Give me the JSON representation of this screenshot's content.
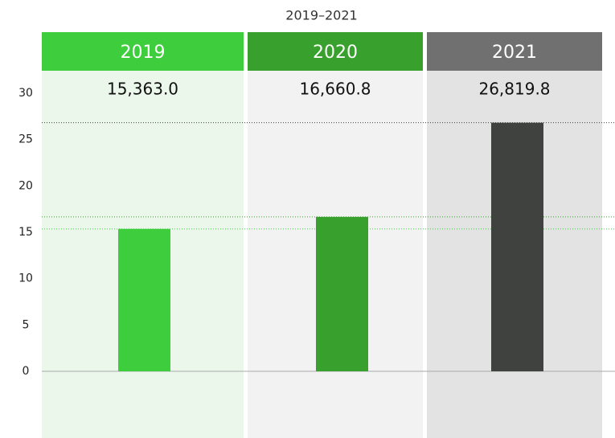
{
  "chart_data": {
    "type": "bar",
    "title": "2019–2021",
    "categories": [
      "2019",
      "2020",
      "2021"
    ],
    "values": [
      15.363,
      16.6608,
      26.8198
    ],
    "value_labels": [
      "15,363.0",
      "16,660.8",
      "26,819.8"
    ],
    "colors": [
      "#3dcd3d",
      "#38a02c",
      "#404240"
    ],
    "ylim": [
      0,
      30
    ],
    "yticks": [
      0,
      5,
      10,
      15,
      20,
      25,
      30
    ],
    "grid": false
  }
}
